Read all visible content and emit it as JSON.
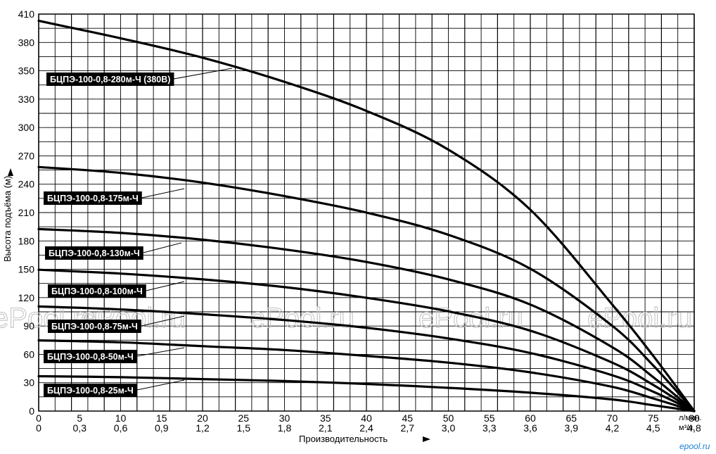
{
  "chart_data": {
    "type": "line",
    "ylabel": "Высота подъёма (м)",
    "xlabel": "Производительность",
    "x_unit_primary": "л/мин.",
    "x_unit_secondary": "м³/ч.",
    "xlim": [
      0,
      80
    ],
    "ylim": [
      0,
      410
    ],
    "x_ticks": [
      "0",
      "5",
      "10",
      "15",
      "20",
      "25",
      "30",
      "35",
      "40",
      "45",
      "50",
      "55",
      "60",
      "65",
      "70",
      "75",
      "80"
    ],
    "x_ticks_secondary": [
      "0",
      "0,3",
      "0,6",
      "0,9",
      "1,2",
      "1,5",
      "1,8",
      "2,1",
      "2,4",
      "2,7",
      "3,0",
      "3,3",
      "3,6",
      "3,9",
      "4,2",
      "4,5",
      "4,8"
    ],
    "y_ticks": [
      "0",
      "30",
      "60",
      "90",
      "120",
      "150",
      "180",
      "210",
      "240",
      "270",
      "300",
      "330",
      "350",
      "380",
      "410"
    ],
    "grid": true,
    "series": [
      {
        "name": "БЦПЭ-100-0,8-280м-Ч (380В)",
        "x": [
          0,
          10,
          20,
          30,
          40,
          50,
          60,
          70,
          75,
          80
        ],
        "values": [
          403,
          385,
          365,
          340,
          310,
          270,
          208,
          110,
          57,
          0
        ]
      },
      {
        "name": "БЦПЭ-100-0,8-175м-Ч",
        "x": [
          0,
          10,
          20,
          30,
          40,
          50,
          60,
          70,
          75,
          80
        ],
        "values": [
          252,
          246,
          236,
          222,
          205,
          182,
          147,
          88,
          47,
          0
        ]
      },
      {
        "name": "БЦПЭ-100-0,8-130м-Ч",
        "x": [
          0,
          10,
          20,
          30,
          40,
          50,
          60,
          70,
          75,
          80
        ],
        "values": [
          188,
          184,
          177,
          167,
          154,
          136,
          110,
          66,
          35,
          0
        ]
      },
      {
        "name": "БЦПЭ-100-0,8-100м-Ч",
        "x": [
          0,
          10,
          20,
          30,
          40,
          50,
          60,
          70,
          75,
          80
        ],
        "values": [
          146,
          142,
          136,
          128,
          117,
          103,
          83,
          50,
          27,
          0
        ]
      },
      {
        "name": "БЦПЭ-100-0,8-75м-Ч",
        "x": [
          0,
          10,
          20,
          30,
          40,
          50,
          60,
          70,
          75,
          80
        ],
        "values": [
          108,
          105,
          100,
          94,
          86,
          75,
          60,
          37,
          20,
          0
        ]
      },
      {
        "name": "БЦПЭ-100-0,8-50м-Ч",
        "x": [
          0,
          10,
          20,
          30,
          40,
          50,
          60,
          70,
          75,
          80
        ],
        "values": [
          73,
          71,
          67,
          63,
          57,
          50,
          40,
          25,
          13,
          0
        ]
      },
      {
        "name": "БЦПЭ-100-0,8-25м-Ч",
        "x": [
          0,
          10,
          20,
          30,
          40,
          50,
          60,
          70,
          75,
          80
        ],
        "values": [
          36,
          35,
          33,
          31,
          28,
          24,
          19,
          12,
          6,
          0
        ]
      }
    ]
  },
  "watermark": "ePool.ru",
  "corner_mark": "epool.ru",
  "colors": {
    "curve": "#000000",
    "grid": "#000000",
    "label_bg": "#000000",
    "label_text": "#ffffff",
    "watermark": "#c9c9c9"
  }
}
